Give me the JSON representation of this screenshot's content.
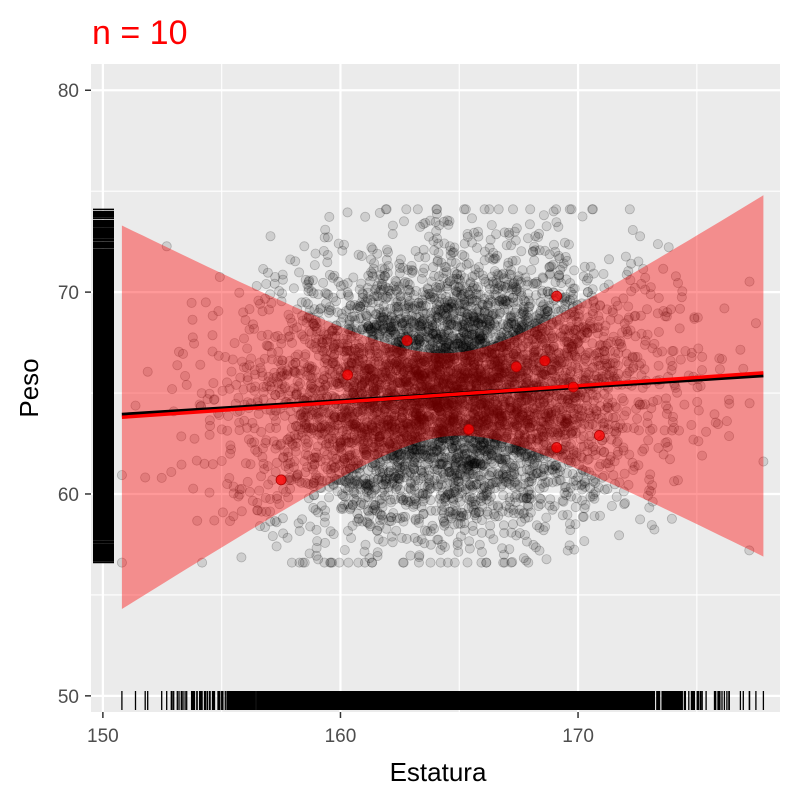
{
  "chart_data": {
    "type": "scatter",
    "title": "n = 10",
    "xlabel": "Estatura",
    "ylabel": "Peso",
    "xlim": [
      149.5,
      178.5
    ],
    "ylim": [
      49.2,
      81.3
    ],
    "x_ticks": [
      150,
      160,
      170
    ],
    "y_ticks": [
      50,
      60,
      70,
      80
    ],
    "x_tick_labels": [
      "150",
      "160",
      "170"
    ],
    "y_tick_labels": [
      "50",
      "60",
      "70",
      "80"
    ],
    "grid": true,
    "population": {
      "n": 6000,
      "x_mean": 164.6,
      "x_sd": 4.0,
      "y_mean": 65.0,
      "y_sd": 3.3,
      "x_min": 150.8,
      "x_max": 177.8,
      "y_min": 56.6,
      "y_max": 74.1
    },
    "sample_points": [
      {
        "x": 157.5,
        "y": 60.7
      },
      {
        "x": 160.3,
        "y": 65.9
      },
      {
        "x": 162.8,
        "y": 67.6
      },
      {
        "x": 165.4,
        "y": 63.2
      },
      {
        "x": 167.4,
        "y": 66.3
      },
      {
        "x": 168.6,
        "y": 66.6
      },
      {
        "x": 169.1,
        "y": 69.8
      },
      {
        "x": 169.1,
        "y": 62.3
      },
      {
        "x": 170.9,
        "y": 62.9
      },
      {
        "x": 169.8,
        "y": 65.3
      }
    ],
    "population_fit": {
      "x": [
        150.8,
        177.8
      ],
      "y": [
        63.9,
        65.9
      ]
    },
    "sample_fit": {
      "x": [
        150.8,
        177.8
      ],
      "y": [
        63.8,
        66.0
      ]
    },
    "confidence_band": {
      "x": [
        150.8,
        164.7,
        177.8
      ],
      "lower": [
        54.3,
        62.7,
        56.9
      ],
      "upper": [
        73.3,
        66.8,
        74.8
      ]
    },
    "colors": {
      "panel": "#ebebeb",
      "grid": "#ffffff",
      "population_points": "#000000",
      "sample_points": "#ff0000",
      "fit_line": "#ff0000",
      "band": "#ff0000",
      "title": "#ff0000"
    }
  }
}
